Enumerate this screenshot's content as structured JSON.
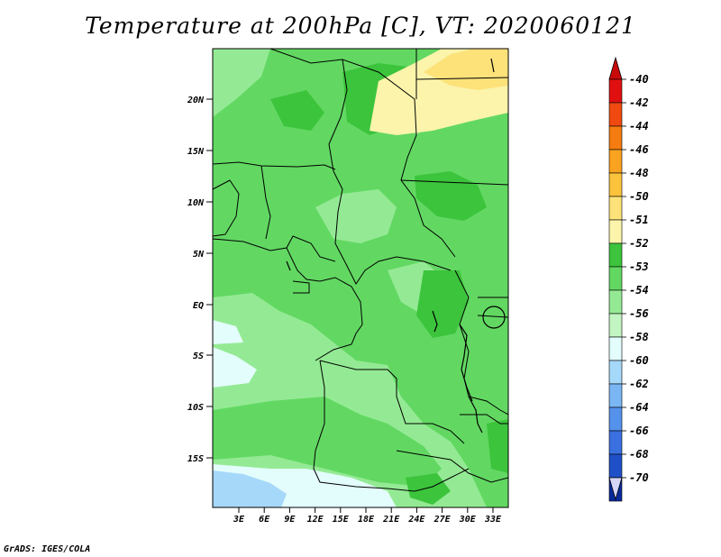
{
  "title": "Temperature at 200hPa [C], VT: 2020060121",
  "credit": "GrADS: IGES/COLA",
  "lat_ticks": [
    "20N",
    "15N",
    "10N",
    "5N",
    "EQ",
    "5S",
    "10S",
    "15S"
  ],
  "lon_ticks": [
    "3E",
    "6E",
    "9E",
    "12E",
    "15E",
    "18E",
    "21E",
    "24E",
    "27E",
    "30E",
    "33E"
  ],
  "colorbar": {
    "labels": [
      "-40",
      "-42",
      "-44",
      "-46",
      "-48",
      "-50",
      "-51",
      "-52",
      "-53",
      "-54",
      "-56",
      "-58",
      "-60",
      "-62",
      "-64",
      "-66",
      "-68",
      "-70"
    ],
    "colors": [
      "#e01010",
      "#f04a10",
      "#f57c10",
      "#f9a320",
      "#fbc23c",
      "#fde27a",
      "#fcf4ab",
      "#3cc43c",
      "#62d862",
      "#94ea94",
      "#c2f5c2",
      "#e3fcfc",
      "#a6d8fa",
      "#7ab6f4",
      "#5592ec",
      "#3a70e0",
      "#2050c8",
      "#0a2a9a",
      "#0a1070"
    ],
    "top_arrow_color": "#c80a0a",
    "bottom_arrow_color": "#d6d6f8"
  }
}
